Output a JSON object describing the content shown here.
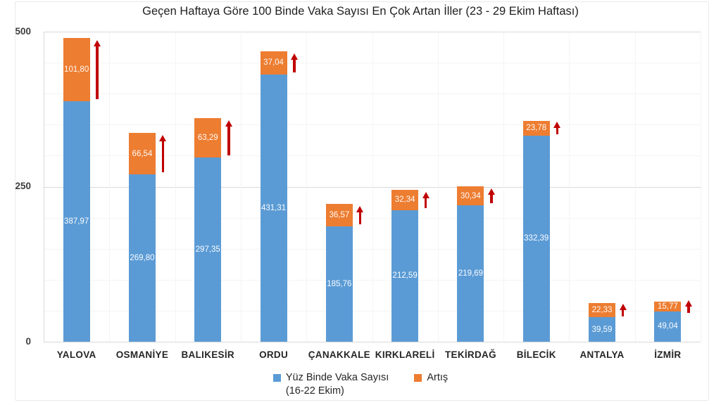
{
  "title": "Geçen Haftaya Göre 100 Binde Vaka Sayısı En Çok Artan İller (23 - 29 Ekim Haftası)",
  "colors": {
    "series_blue": "#5B9BD5",
    "series_orange": "#ED7D31",
    "arrow_red": "#C00000",
    "grid_major": "#D9D9D9",
    "grid_minor": "#F4F4F4",
    "axis_text": "#3F3F3F",
    "bar_label_text": "#FFFFFF"
  },
  "y_axis": {
    "ticks": [
      "500",
      "250",
      "0"
    ]
  },
  "legend": {
    "items": [
      {
        "line1": "Yüz Binde Vaka Sayısı",
        "line2": "(16-22 Ekim)",
        "color": "#5B9BD5"
      },
      {
        "line1": "Artış",
        "line2": "",
        "color": "#ED7D31"
      }
    ]
  },
  "chart_data": {
    "type": "bar",
    "stacked": true,
    "title": "Geçen Haftaya Göre 100 Binde Vaka Sayısı En Çok Artan İller (23 - 29 Ekim Haftası)",
    "categories": [
      "YALOVA",
      "OSMANİYE",
      "BALIKESİR",
      "ORDU",
      "ÇANAKKALE",
      "KIRKLARELİ",
      "TEKİRDAĞ",
      "BİLECİK",
      "ANTALYA",
      "İZMİR"
    ],
    "series": [
      {
        "name": "Yüz Binde Vaka Sayısı (16-22 Ekim)",
        "color": "#5B9BD5",
        "values": [
          387.97,
          269.8,
          297.35,
          431.31,
          185.76,
          212.59,
          219.69,
          332.39,
          39.59,
          49.04
        ],
        "labels": [
          "387,97",
          "269,80",
          "297,35",
          "431,31",
          "185,76",
          "212,59",
          "219,69",
          "332,39",
          "39,59",
          "49,04"
        ]
      },
      {
        "name": "Artış",
        "color": "#ED7D31",
        "values": [
          101.8,
          66.54,
          63.29,
          37.04,
          36.57,
          32.34,
          30.34,
          23.78,
          22.33,
          15.77
        ],
        "labels": [
          "101,80",
          "66,54",
          "63,29",
          "37,04",
          "36,57",
          "32,34",
          "30,34",
          "23,78",
          "22,33",
          "15,77"
        ]
      }
    ],
    "ylim": [
      0,
      500
    ],
    "yticks": [
      0,
      250,
      500
    ],
    "minor_grid_step": 50,
    "grid": true,
    "legend_position": "bottom",
    "annotations": {
      "type": "up-arrow-per-bar",
      "color": "#C00000"
    }
  }
}
